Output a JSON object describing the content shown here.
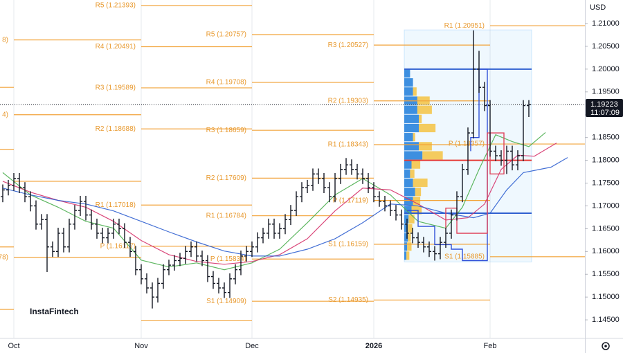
{
  "chart_data": {
    "type": "ohlc",
    "currency": "USD",
    "watermark": "InstaFintech",
    "bar_color": "#131722",
    "categories": [
      null,
      null,
      "Oct",
      null,
      null,
      null,
      null,
      null,
      null,
      null,
      null,
      null,
      null,
      null,
      null,
      null,
      null,
      null,
      null,
      null,
      null,
      null,
      null,
      null,
      null,
      "Nov",
      null,
      null,
      null,
      null,
      null,
      null,
      null,
      null,
      null,
      null,
      null,
      null,
      null,
      null,
      null,
      null,
      null,
      null,
      null,
      "Dec",
      null,
      null,
      null,
      null,
      null,
      null,
      null,
      null,
      null,
      null,
      null,
      null,
      null,
      null,
      null,
      null,
      null,
      null,
      null,
      null,
      null,
      "2026",
      null,
      null,
      null,
      null,
      null,
      null,
      null,
      null,
      null,
      null,
      null,
      null,
      null,
      null,
      null,
      null,
      null,
      null,
      null,
      null,
      "Feb",
      null,
      null,
      null,
      null,
      null,
      null,
      null
    ],
    "open": [
      1.172,
      1.1735,
      1.1745,
      1.176,
      1.174,
      1.172,
      1.17,
      1.166,
      1.167,
      1.161,
      1.16,
      1.164,
      1.161,
      1.166,
      1.169,
      1.171,
      1.168,
      1.166,
      1.164,
      1.163,
      1.164,
      1.166,
      1.165,
      1.162,
      1.16,
      1.156,
      1.154,
      1.152,
      1.15,
      1.153,
      1.156,
      1.157,
      1.158,
      1.1585,
      1.16,
      1.161,
      1.159,
      1.158,
      1.1545,
      1.153,
      1.152,
      1.151,
      1.154,
      1.156,
      1.159,
      1.16,
      1.161,
      1.163,
      1.164,
      1.166,
      1.164,
      1.165,
      1.167,
      1.169,
      1.172,
      1.174,
      1.1745,
      1.177,
      1.176,
      1.174,
      1.172,
      1.176,
      1.178,
      1.179,
      1.178,
      1.177,
      1.176,
      1.174,
      1.172,
      1.171,
      1.17,
      1.169,
      1.168,
      1.166,
      1.164,
      1.163,
      1.162,
      1.161,
      1.16,
      1.1595,
      1.162,
      1.164,
      1.168,
      1.172,
      1.178,
      1.186,
      1.2,
      1.196,
      1.192,
      1.182,
      1.181,
      1.18,
      1.182,
      1.179,
      1.181,
      1.192
    ],
    "high": [
      1.1747,
      1.1757,
      1.1772,
      1.1772,
      1.1752,
      1.1732,
      1.1712,
      1.1682,
      1.1682,
      1.1622,
      1.1652,
      1.1652,
      1.1672,
      1.1702,
      1.1722,
      1.1722,
      1.1692,
      1.1672,
      1.1652,
      1.1652,
      1.1672,
      1.1672,
      1.1662,
      1.1632,
      1.1612,
      1.1572,
      1.1552,
      1.1532,
      1.1542,
      1.1572,
      1.1582,
      1.1592,
      1.1597,
      1.1612,
      1.1622,
      1.1622,
      1.1602,
      1.1592,
      1.1557,
      1.1542,
      1.1532,
      1.1552,
      1.1572,
      1.1602,
      1.1612,
      1.1622,
      1.1642,
      1.1652,
      1.1672,
      1.1672,
      1.1662,
      1.1682,
      1.1702,
      1.1732,
      1.1752,
      1.1757,
      1.1782,
      1.1782,
      1.1772,
      1.1752,
      1.1772,
      1.1792,
      1.1805,
      1.1802,
      1.1792,
      1.1782,
      1.1772,
      1.1752,
      1.1732,
      1.1722,
      1.1712,
      1.1702,
      1.1692,
      1.1672,
      1.1652,
      1.1642,
      1.1632,
      1.1622,
      1.1612,
      1.1632,
      1.1652,
      1.1692,
      1.1732,
      1.1792,
      1.1872,
      1.2085,
      1.204,
      1.1972,
      1.1932,
      1.1832,
      1.1822,
      1.1832,
      1.1832,
      1.1822,
      1.1932,
      1.1932
    ],
    "low": [
      1.1708,
      1.1723,
      1.1733,
      1.1728,
      1.1708,
      1.1688,
      1.1648,
      1.1648,
      1.1555,
      1.1588,
      1.1588,
      1.1598,
      1.1598,
      1.1648,
      1.1678,
      1.1668,
      1.1648,
      1.1628,
      1.1618,
      1.1618,
      1.1628,
      1.1638,
      1.1608,
      1.1588,
      1.1548,
      1.1528,
      1.1508,
      1.1475,
      1.1488,
      1.1518,
      1.1548,
      1.1558,
      1.1568,
      1.1573,
      1.1588,
      1.1578,
      1.1568,
      1.1533,
      1.1518,
      1.1508,
      1.1498,
      1.1498,
      1.1528,
      1.1548,
      1.1578,
      1.1588,
      1.1598,
      1.1618,
      1.1628,
      1.1628,
      1.1628,
      1.1638,
      1.1658,
      1.1678,
      1.1708,
      1.1728,
      1.1733,
      1.1748,
      1.1728,
      1.1708,
      1.1708,
      1.1748,
      1.1768,
      1.1768,
      1.1758,
      1.1748,
      1.1728,
      1.1708,
      1.1698,
      1.1688,
      1.1678,
      1.1668,
      1.1648,
      1.1628,
      1.1618,
      1.1608,
      1.1598,
      1.1588,
      1.158,
      1.1583,
      1.1608,
      1.1628,
      1.1668,
      1.1708,
      1.1768,
      1.1848,
      1.1948,
      1.1908,
      1.1808,
      1.1798,
      1.1788,
      1.177,
      1.1778,
      1.1778,
      1.1798,
      1.1895
    ],
    "close": [
      1.1735,
      1.1745,
      1.176,
      1.174,
      1.172,
      1.17,
      1.166,
      1.167,
      1.161,
      1.16,
      1.164,
      1.161,
      1.166,
      1.169,
      1.171,
      1.168,
      1.166,
      1.164,
      1.163,
      1.164,
      1.166,
      1.165,
      1.162,
      1.16,
      1.156,
      1.154,
      1.152,
      1.15,
      1.153,
      1.156,
      1.157,
      1.158,
      1.1585,
      1.16,
      1.161,
      1.159,
      1.158,
      1.1545,
      1.153,
      1.152,
      1.151,
      1.154,
      1.156,
      1.159,
      1.16,
      1.161,
      1.163,
      1.164,
      1.166,
      1.164,
      1.165,
      1.167,
      1.169,
      1.172,
      1.174,
      1.1745,
      1.177,
      1.176,
      1.174,
      1.172,
      1.176,
      1.178,
      1.179,
      1.178,
      1.177,
      1.176,
      1.174,
      1.172,
      1.171,
      1.17,
      1.169,
      1.168,
      1.166,
      1.164,
      1.163,
      1.162,
      1.161,
      1.16,
      1.1595,
      1.162,
      1.164,
      1.168,
      1.172,
      1.178,
      1.186,
      1.2,
      1.196,
      1.192,
      1.182,
      1.181,
      1.18,
      1.182,
      1.179,
      1.181,
      1.192,
      1.1922
    ],
    "xlim": [
      -0.5,
      105.125
    ],
    "ylim": [
      1.14107,
      1.21516
    ],
    "yticks": [
      {
        "value": 1.21,
        "label": "1.21000"
      },
      {
        "value": 1.205,
        "label": "1.20500"
      },
      {
        "value": 1.2,
        "label": "1.20000"
      },
      {
        "value": 1.195,
        "label": "1.19500"
      },
      {
        "value": 1.19,
        "label": "1.19000"
      },
      {
        "value": 1.185,
        "label": "1.18500"
      },
      {
        "value": 1.18,
        "label": "1.18000"
      },
      {
        "value": 1.175,
        "label": "1.17500"
      },
      {
        "value": 1.17,
        "label": "1.17000"
      },
      {
        "value": 1.165,
        "label": "1.16500"
      },
      {
        "value": 1.16,
        "label": "1.16000"
      },
      {
        "value": 1.155,
        "label": "1.15500"
      },
      {
        "value": 1.15,
        "label": "1.15000"
      },
      {
        "value": 1.145,
        "label": "1.14500"
      }
    ],
    "last_price": 1.19223,
    "countdown": "11:07:09",
    "moving_averages": [
      {
        "color": "#4caf50",
        "x": [
          0,
          5,
          10,
          15,
          20,
          25,
          30,
          35,
          40,
          45,
          50,
          55,
          60,
          65,
          70,
          75,
          80,
          83,
          86,
          89,
          92,
          95,
          98
        ],
        "values": [
          1.1773,
          1.1724,
          1.1697,
          1.1666,
          1.1651,
          1.1581,
          1.1566,
          1.1575,
          1.156,
          1.1575,
          1.1605,
          1.1663,
          1.1724,
          1.176,
          1.1724,
          1.1666,
          1.1651,
          1.1697,
          1.178,
          1.1856,
          1.1841,
          1.183,
          1.1861
        ]
      },
      {
        "color": "#d6336c",
        "x": [
          0,
          5,
          10,
          15,
          20,
          25,
          30,
          35,
          40,
          45,
          50,
          55,
          60,
          65,
          70,
          75,
          80,
          84,
          87,
          90,
          93,
          96,
          100
        ],
        "values": [
          1.1754,
          1.173,
          1.1712,
          1.1697,
          1.1666,
          1.1624,
          1.1593,
          1.1578,
          1.1572,
          1.1578,
          1.1593,
          1.1628,
          1.1689,
          1.1739,
          1.1735,
          1.1704,
          1.1669,
          1.1674,
          1.1704,
          1.178,
          1.1811,
          1.1809,
          1.1838
        ]
      },
      {
        "color": "#2f5fd0",
        "x": [
          0,
          5,
          10,
          15,
          20,
          25,
          30,
          35,
          40,
          45,
          50,
          55,
          60,
          65,
          70,
          75,
          80,
          85,
          88,
          91,
          94,
          99,
          102
        ],
        "values": [
          1.1739,
          1.1724,
          1.1712,
          1.1704,
          1.1689,
          1.1666,
          1.1643,
          1.1621,
          1.1601,
          1.159,
          1.159,
          1.1605,
          1.1628,
          1.1663,
          1.1704,
          1.17,
          1.1684,
          1.1674,
          1.1684,
          1.1735,
          1.1773,
          1.1785,
          1.1806
        ]
      }
    ],
    "pivot_color": "#f2a33a",
    "pivots": [
      {
        "x": [
          -0.5,
          2
        ],
        "levels": [
          {
            "value": 1.196
          },
          {
            "value": 1.1824
          },
          {
            "value": 1.161
          },
          {
            "value": 1.1473
          }
        ]
      },
      {
        "x": [
          2,
          25
        ],
        "levels": [
          {
            "label": "8)",
            "value": 1.2064
          },
          {
            "label": "4)",
            "value": 1.19
          },
          {
            "value": 1.1754
          },
          {
            "label": "78)",
            "value": 1.1587
          }
        ]
      },
      {
        "x": [
          25,
          45
        ],
        "levels": [
          {
            "label": "R5 (1.21393)",
            "value": 1.21393
          },
          {
            "label": "R4 (1.20491)",
            "value": 1.20491
          },
          {
            "label": "R3 (1.19589)",
            "value": 1.19589
          },
          {
            "label": "R2 (1.18688)",
            "value": 1.18688
          },
          {
            "label": "R1 (1.17018)",
            "value": 1.17018
          },
          {
            "label": "P (1.16117)",
            "value": 1.16117
          },
          {
            "value": 1.1448
          }
        ]
      },
      {
        "x": [
          45,
          67
        ],
        "levels": [
          {
            "label": "R5 (1.20757)",
            "value": 1.20757
          },
          {
            "label": "R4 (1.19708)",
            "value": 1.19708
          },
          {
            "label": "R3 (1.18659)",
            "value": 1.18659
          },
          {
            "label": "R2 (1.17609)",
            "value": 1.17609
          },
          {
            "label": "R1 (1.16784)",
            "value": 1.16784
          },
          {
            "label": "P (1.15834)",
            "value": 1.15834
          },
          {
            "label": "S1 (1.14909)",
            "value": 1.14909
          }
        ]
      },
      {
        "x": [
          67,
          88
        ],
        "levels": [
          {
            "label": "R3 (1.20527)",
            "value": 1.20527
          },
          {
            "label": "R2 (1.19303)",
            "value": 1.19303
          },
          {
            "label": "R1 (1.18343)",
            "value": 1.18343
          },
          {
            "label": "P (1.17119)",
            "value": 1.17119
          },
          {
            "label": "S1 (1.16159)",
            "value": 1.16159
          },
          {
            "label": "S2 (1.14935)",
            "value": 1.14935
          }
        ]
      },
      {
        "x": [
          88,
          105.125
        ],
        "levels": [
          {
            "label": "R1 (1.20951)",
            "value": 1.20951
          },
          {
            "label": "P (1.18357)",
            "value": 1.18357
          },
          {
            "label": "S1 (1.15885)",
            "value": 1.15885
          }
        ]
      }
    ],
    "volume_profile": {
      "x": [
        72.5,
        95.5
      ],
      "ylim": [
        1.1577,
        1.2086
      ],
      "bins": [
        1.158,
        1.16,
        1.162,
        1.164,
        1.166,
        1.168,
        1.17,
        1.172,
        1.174,
        1.176,
        1.178,
        1.18,
        1.182,
        1.184,
        1.186,
        1.188,
        1.19,
        1.192,
        1.194,
        1.196,
        1.198,
        1.2
      ],
      "up": [
        3,
        4,
        5,
        5,
        6,
        10,
        12,
        15,
        12,
        8,
        10,
        25,
        20,
        12,
        20,
        20,
        18,
        18,
        12,
        12,
        8
      ],
      "down": [
        4,
        6,
        4,
        6,
        8,
        14,
        10,
        8,
        20,
        6,
        12,
        28,
        18,
        3,
        23,
        4,
        20,
        17,
        5,
        0,
        0
      ],
      "up_color": "#3d8fe0",
      "down_color": "#f5c342",
      "value_area_high": 1.2,
      "poc": 1.18,
      "value_area_low": 1.1684,
      "value_area_color": "#2f5fd0",
      "poc_color": "#e53935"
    },
    "steps": [
      {
        "color": "#2f4fd8",
        "x": [
          73,
          75,
          75,
          78,
          78,
          81,
          81,
          83,
          83,
          87.5,
          87.5,
          86,
          86,
          84.5,
          84.5
        ],
        "values": [
          1.169,
          1.169,
          1.1655,
          1.1655,
          1.1615,
          1.1615,
          1.1605,
          1.1605,
          1.158,
          1.158,
          1.2,
          1.2,
          1.185,
          1.185,
          1.182
        ]
      },
      {
        "color": "#e0435b",
        "x": [
          80,
          80,
          82,
          82,
          87.5,
          87.5,
          90.5,
          90.5,
          88,
          88
        ],
        "values": [
          1.165,
          1.1695,
          1.1695,
          1.164,
          1.164,
          1.186,
          1.186,
          1.177,
          1.177,
          1.186
        ]
      }
    ]
  }
}
